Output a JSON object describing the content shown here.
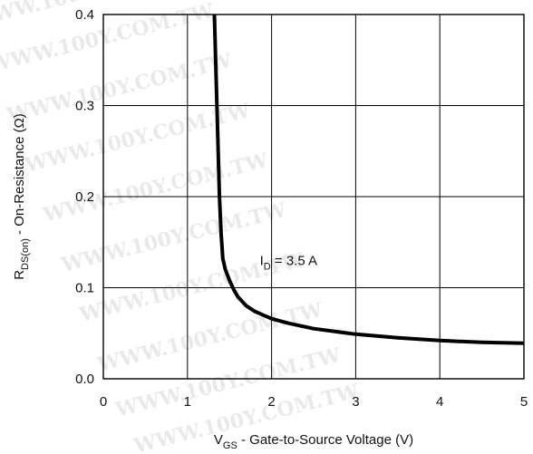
{
  "chart_data": {
    "type": "line",
    "title": "",
    "xlabel": {
      "main": "V",
      "sub": "GS",
      "rest": " - Gate-to-Source Voltage (V)"
    },
    "ylabel": {
      "main": "R",
      "sub": "DS(on)",
      "rest": " - On-Resistance (Ω)"
    },
    "xlim": [
      0,
      5
    ],
    "ylim": [
      0.0,
      0.4
    ],
    "x_ticks": [
      0,
      1,
      2,
      3,
      4,
      5
    ],
    "x_tick_labels": [
      "0",
      "1",
      "2",
      "3",
      "4",
      "5"
    ],
    "y_ticks": [
      0.0,
      0.1,
      0.2,
      0.3,
      0.4
    ],
    "y_tick_labels": [
      "0.0",
      "0.1",
      "0.2",
      "0.3",
      "0.4"
    ],
    "grid": true,
    "legend": "none",
    "series": [
      {
        "color": "#000000",
        "x": [
          1.32,
          1.35,
          1.38,
          1.4,
          1.42,
          1.45,
          1.5,
          1.55,
          1.6,
          1.7,
          1.8,
          2.0,
          2.2,
          2.5,
          3.0,
          3.5,
          4.0,
          4.5,
          5.0
        ],
        "y": [
          0.4,
          0.3,
          0.2,
          0.16,
          0.132,
          0.12,
          0.108,
          0.098,
          0.09,
          0.08,
          0.074,
          0.066,
          0.061,
          0.055,
          0.049,
          0.045,
          0.042,
          0.04,
          0.039
        ]
      }
    ],
    "annotation": {
      "main": "I",
      "sub": "D",
      "rest": " =  3.5 A",
      "x": 1.86,
      "y": 0.125
    }
  },
  "watermark": "WWW.100Y.COM.TW"
}
